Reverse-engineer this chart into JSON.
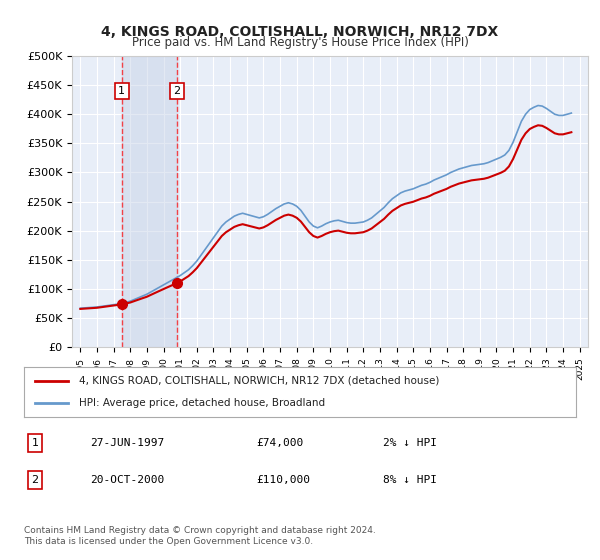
{
  "title": "4, KINGS ROAD, COLTISHALL, NORWICH, NR12 7DX",
  "subtitle": "Price paid vs. HM Land Registry's House Price Index (HPI)",
  "background_color": "#ffffff",
  "plot_bg_color": "#e8eef8",
  "grid_color": "#ffffff",
  "ylim": [
    0,
    500000
  ],
  "yticks": [
    0,
    50000,
    100000,
    150000,
    200000,
    250000,
    300000,
    350000,
    400000,
    450000,
    500000
  ],
  "ytick_labels": [
    "£0",
    "£50K",
    "£100K",
    "£150K",
    "£200K",
    "£250K",
    "£300K",
    "£350K",
    "£400K",
    "£450K",
    "£500K"
  ],
  "x_start_year": 1995,
  "x_end_year": 2025,
  "hpi_line_color": "#6699cc",
  "price_line_color": "#cc0000",
  "price_marker_color": "#cc0000",
  "sale1_year": 1997.49,
  "sale1_price": 74000,
  "sale2_year": 2000.8,
  "sale2_price": 110000,
  "legend_address": "4, KINGS ROAD, COLTISHALL, NORWICH, NR12 7DX (detached house)",
  "legend_hpi": "HPI: Average price, detached house, Broadland",
  "table_data": [
    {
      "num": 1,
      "date": "27-JUN-1997",
      "price": "£74,000",
      "hpi": "2% ↓ HPI"
    },
    {
      "num": 2,
      "date": "20-OCT-2000",
      "price": "£110,000",
      "hpi": "8% ↓ HPI"
    }
  ],
  "footer": "Contains HM Land Registry data © Crown copyright and database right 2024.\nThis data is licensed under the Open Government Licence v3.0.",
  "hpi_data_x": [
    1995,
    1995.25,
    1995.5,
    1995.75,
    1996,
    1996.25,
    1996.5,
    1996.75,
    1997,
    1997.25,
    1997.5,
    1997.75,
    1998,
    1998.25,
    1998.5,
    1998.75,
    1999,
    1999.25,
    1999.5,
    1999.75,
    2000,
    2000.25,
    2000.5,
    2000.75,
    2001,
    2001.25,
    2001.5,
    2001.75,
    2002,
    2002.25,
    2002.5,
    2002.75,
    2003,
    2003.25,
    2003.5,
    2003.75,
    2004,
    2004.25,
    2004.5,
    2004.75,
    2005,
    2005.25,
    2005.5,
    2005.75,
    2006,
    2006.25,
    2006.5,
    2006.75,
    2007,
    2007.25,
    2007.5,
    2007.75,
    2008,
    2008.25,
    2008.5,
    2008.75,
    2009,
    2009.25,
    2009.5,
    2009.75,
    2010,
    2010.25,
    2010.5,
    2010.75,
    2011,
    2011.25,
    2011.5,
    2011.75,
    2012,
    2012.25,
    2012.5,
    2012.75,
    2013,
    2013.25,
    2013.5,
    2013.75,
    2014,
    2014.25,
    2014.5,
    2014.75,
    2015,
    2015.25,
    2015.5,
    2015.75,
    2016,
    2016.25,
    2016.5,
    2016.75,
    2017,
    2017.25,
    2017.5,
    2017.75,
    2018,
    2018.25,
    2018.5,
    2018.75,
    2019,
    2019.25,
    2019.5,
    2019.75,
    2020,
    2020.25,
    2020.5,
    2020.75,
    2021,
    2021.25,
    2021.5,
    2021.75,
    2022,
    2022.25,
    2022.5,
    2022.75,
    2023,
    2023.25,
    2023.5,
    2023.75,
    2024,
    2024.25,
    2024.5
  ],
  "hpi_data_y": [
    67000,
    67500,
    68000,
    68500,
    69000,
    70000,
    71000,
    72000,
    73000,
    74000,
    75500,
    77000,
    79000,
    82000,
    85000,
    88000,
    91000,
    95000,
    99000,
    103000,
    107000,
    111000,
    115000,
    119000,
    123000,
    128000,
    133000,
    140000,
    148000,
    158000,
    168000,
    178000,
    188000,
    198000,
    208000,
    215000,
    220000,
    225000,
    228000,
    230000,
    228000,
    226000,
    224000,
    222000,
    224000,
    228000,
    233000,
    238000,
    242000,
    246000,
    248000,
    246000,
    242000,
    235000,
    225000,
    215000,
    208000,
    205000,
    208000,
    212000,
    215000,
    217000,
    218000,
    216000,
    214000,
    213000,
    213000,
    214000,
    215000,
    218000,
    222000,
    228000,
    234000,
    240000,
    248000,
    255000,
    260000,
    265000,
    268000,
    270000,
    272000,
    275000,
    278000,
    280000,
    283000,
    287000,
    290000,
    293000,
    296000,
    300000,
    303000,
    306000,
    308000,
    310000,
    312000,
    313000,
    314000,
    315000,
    317000,
    320000,
    323000,
    326000,
    330000,
    338000,
    352000,
    370000,
    388000,
    400000,
    408000,
    412000,
    415000,
    414000,
    410000,
    405000,
    400000,
    398000,
    398000,
    400000,
    402000
  ]
}
